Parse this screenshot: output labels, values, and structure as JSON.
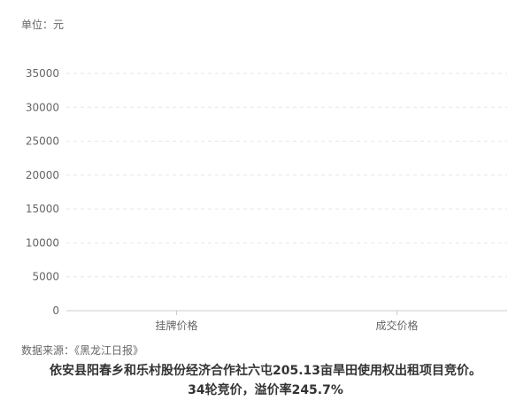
{
  "chart_data": {
    "type": "bar",
    "unit_label": "单位：元",
    "categories": [
      "挂牌价格",
      "成交价格"
    ],
    "values": [
      0,
      0
    ],
    "ylim": [
      0,
      35000
    ],
    "yticks": [
      0,
      5000,
      10000,
      15000,
      20000,
      25000,
      30000,
      35000
    ],
    "grid": true,
    "bar_color": "#c8d6d6"
  },
  "source": "数据来源：《黑龙江日报》",
  "caption": {
    "line1": "依安县阳春乡和乐村股份经济合作社六屯205.13亩旱田使用权出租项目竞价。",
    "line2": "34轮竞价，溢价率245.7%"
  }
}
